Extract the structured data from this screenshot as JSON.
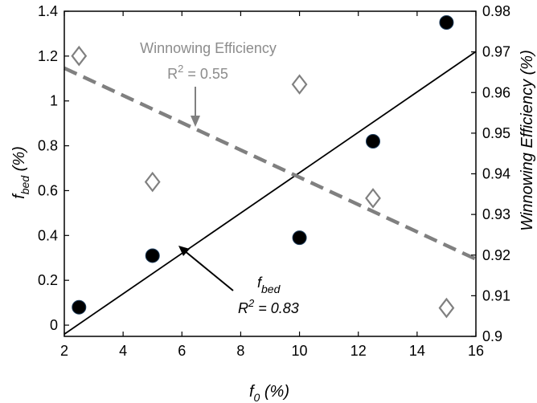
{
  "chart_data": {
    "type": "scatter",
    "xlabel": {
      "base": "f",
      "sub": "0",
      "unit": " (%)"
    },
    "ylabel_left": {
      "base": "f",
      "sub": "bed",
      "unit": " (%)"
    },
    "ylabel_right": "Winnowing Efficiency (%)",
    "xlim": [
      2,
      16
    ],
    "ylim_left": [
      -0.05,
      1.4
    ],
    "ylim_right": [
      0.9,
      0.98
    ],
    "x_ticks": [
      2,
      4,
      6,
      8,
      10,
      12,
      14,
      16
    ],
    "y_left_ticks": [
      0,
      0.2,
      0.4,
      0.6,
      0.8,
      1,
      1.2,
      1.4
    ],
    "y_right_ticks": [
      0.9,
      0.91,
      0.92,
      0.93,
      0.94,
      0.95,
      0.96,
      0.97,
      0.98
    ],
    "series": [
      {
        "name": "f_bed",
        "axis": "left",
        "marker": "filled-circle",
        "color": "#000000",
        "points": [
          [
            2.5,
            0.08
          ],
          [
            5,
            0.31
          ],
          [
            10,
            0.39
          ],
          [
            12.5,
            0.82
          ],
          [
            15,
            1.35
          ]
        ],
        "fit": {
          "x": [
            2,
            16
          ],
          "y": [
            -0.04,
            1.22
          ]
        }
      },
      {
        "name": "Winnowing Efficiency",
        "axis": "right",
        "marker": "open-diamond",
        "color": "#808080",
        "points": [
          [
            2.5,
            0.969
          ],
          [
            5,
            0.938
          ],
          [
            10,
            0.962
          ],
          [
            12.5,
            0.934
          ],
          [
            15,
            0.907
          ]
        ],
        "fit": {
          "x": [
            2,
            16
          ],
          "y": [
            0.966,
            0.919
          ]
        }
      }
    ],
    "annotations": {
      "we": {
        "title": "Winnowing Efficiency",
        "r2": "R",
        "r2_value": " = 0.55"
      },
      "fbed": {
        "title_base": "f",
        "title_sub": "bed",
        "r2": "R",
        "r2_value": " = 0.83"
      }
    }
  }
}
